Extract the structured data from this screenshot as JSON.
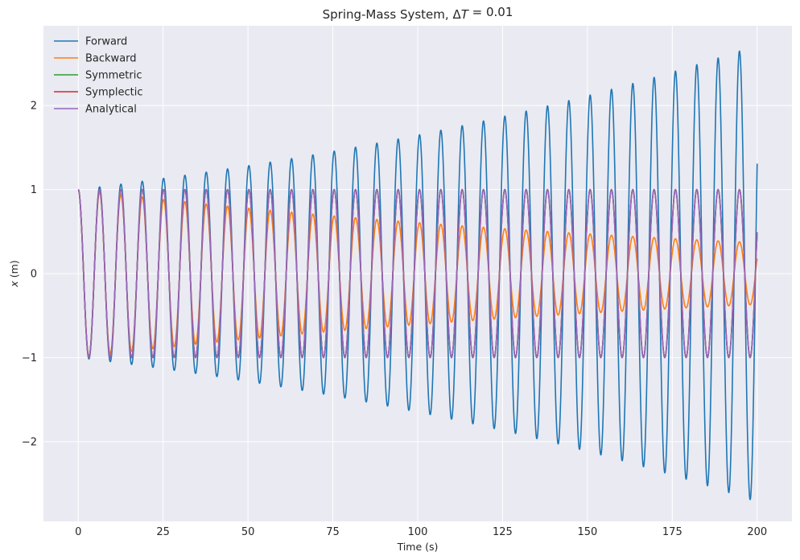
{
  "chart_data": {
    "type": "line",
    "title": {
      "prefix": "Spring-Mass System, ",
      "delta": "Δ",
      "sym": "T",
      "sub": "",
      "suffix": " = 0.01"
    },
    "xlabel": "Time (s)",
    "ylabel": {
      "var": "x",
      "unit": " (m)"
    },
    "xlim": [
      -10.25,
      210.25
    ],
    "ylim": [
      -2.95,
      2.95
    ],
    "xticks": [
      0,
      25,
      50,
      75,
      100,
      125,
      150,
      175,
      200
    ],
    "xtick_labels": [
      "0",
      "25",
      "50",
      "75",
      "100",
      "125",
      "150",
      "175",
      "200"
    ],
    "yticks": [
      -2,
      -1,
      0,
      1,
      2
    ],
    "ytick_labels": [
      "−2",
      "−1",
      "0",
      "1",
      "2"
    ],
    "grid": true,
    "legend_position": "top-left",
    "dt": 0.01,
    "t_end": 200,
    "omega": 1.0,
    "x0": 1.0,
    "series": [
      {
        "name": "Forward",
        "color": "#1f77b4",
        "start": [
          0,
          1.0
        ],
        "end": [
          200,
          1.28
        ],
        "peak_envelope": [
          [
            0,
            1.0
          ],
          [
            100,
            1.65
          ],
          [
            200,
            2.7
          ]
        ]
      },
      {
        "name": "Backward",
        "color": "#ff7f0e",
        "start": [
          0,
          1.0
        ],
        "end": [
          200,
          0.18
        ],
        "peak_envelope": [
          [
            0,
            1.0
          ],
          [
            100,
            0.61
          ],
          [
            200,
            0.37
          ]
        ]
      },
      {
        "name": "Symmetric",
        "color": "#2ca02c",
        "start": [
          0,
          1.0
        ],
        "end": [
          200,
          0.49
        ],
        "peak_envelope": [
          [
            0,
            1.0
          ],
          [
            100,
            1.0
          ],
          [
            200,
            1.0
          ]
        ]
      },
      {
        "name": "Symplectic",
        "color": "#d62728",
        "start": [
          0,
          1.0
        ],
        "end": [
          200,
          0.49
        ],
        "peak_envelope": [
          [
            0,
            1.0
          ],
          [
            100,
            1.0
          ],
          [
            200,
            1.0
          ]
        ]
      },
      {
        "name": "Analytical",
        "color": "#9467bd",
        "start": [
          0,
          1.0
        ],
        "end": [
          200,
          0.49
        ],
        "peak_envelope": [
          [
            0,
            1.0
          ],
          [
            100,
            1.0
          ],
          [
            200,
            1.0
          ]
        ]
      }
    ],
    "colors": {
      "axes_bg": "#eaeaf2",
      "grid": "#ffffff",
      "text": "#262626"
    }
  }
}
